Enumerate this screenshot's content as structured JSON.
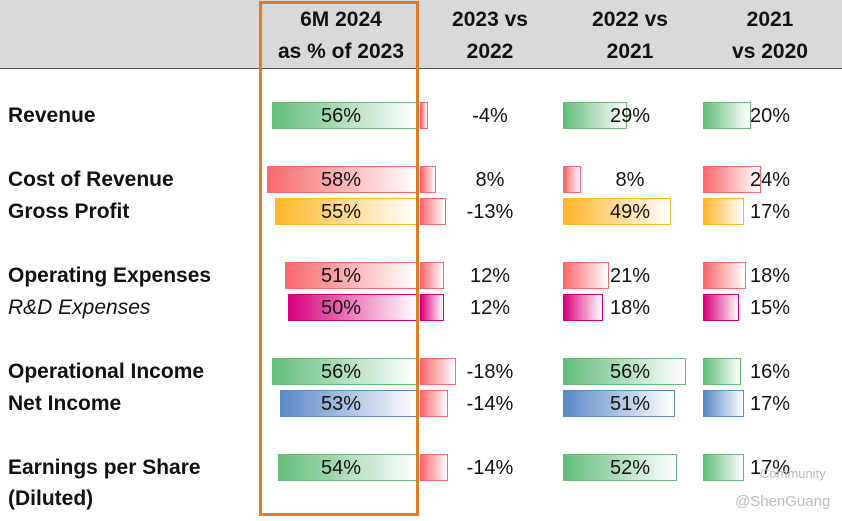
{
  "header": {
    "columns": [
      "6M 2024\nas % of 2023",
      "2023 vs\n2022",
      "2022 vs\n2021",
      "2021\nvs 2020"
    ]
  },
  "rows": [
    {
      "label": "Revenue",
      "values": [
        56,
        -4,
        29,
        20
      ],
      "value_labels": [
        "56%",
        "-4%",
        "29%",
        "20%"
      ],
      "colors": [
        "#63be7b",
        "#f8696b",
        "#63be7b",
        "#63be7b"
      ]
    },
    {
      "label": "Cost of Revenue",
      "values": [
        58,
        8,
        8,
        24
      ],
      "value_labels": [
        "58%",
        "8%",
        "8%",
        "24%"
      ],
      "colors": [
        "#f8696b",
        "#f8696b",
        "#f8696b",
        "#f8696b"
      ]
    },
    {
      "label": "Gross Profit",
      "values": [
        55,
        -13,
        49,
        17
      ],
      "value_labels": [
        "55%",
        "-13%",
        "49%",
        "17%"
      ],
      "colors": [
        "#ffb628",
        "#f8696b",
        "#ffb628",
        "#ffb628"
      ]
    },
    {
      "label": "Operating Expenses",
      "values": [
        51,
        12,
        21,
        18
      ],
      "value_labels": [
        "51%",
        "12%",
        "21%",
        "18%"
      ],
      "colors": [
        "#f8696b",
        "#f8696b",
        "#f8696b",
        "#f8696b"
      ]
    },
    {
      "label": "R&D Expenses",
      "style": "italic",
      "values": [
        50,
        12,
        18,
        15
      ],
      "value_labels": [
        "50%",
        "12%",
        "18%",
        "15%"
      ],
      "colors": [
        "#d6007b",
        "#d6007b",
        "#d6007b",
        "#d6007b"
      ]
    },
    {
      "label": "Operational Income",
      "values": [
        56,
        -18,
        56,
        16
      ],
      "value_labels": [
        "56%",
        "-18%",
        "56%",
        "16%"
      ],
      "colors": [
        "#63be7b",
        "#f8696b",
        "#63be7b",
        "#63be7b"
      ]
    },
    {
      "label": "Net Income",
      "values": [
        53,
        -14,
        51,
        17
      ],
      "value_labels": [
        "53%",
        "-14%",
        "51%",
        "17%"
      ],
      "colors": [
        "#5a8ac6",
        "#f8696b",
        "#5a8ac6",
        "#5a8ac6"
      ]
    },
    {
      "label": "Earnings per Share\n(Diluted)",
      "values": [
        54,
        -14,
        52,
        17
      ],
      "value_labels": [
        "54%",
        "-14%",
        "52%",
        "17%"
      ],
      "colors": [
        "#63be7b",
        "#f8696b",
        "#63be7b",
        "#63be7b"
      ]
    }
  ],
  "watermark": [
    "Community",
    "@ShenGuang"
  ]
}
